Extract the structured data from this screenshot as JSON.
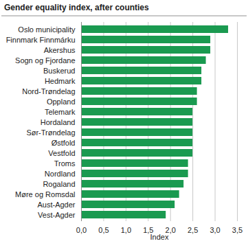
{
  "chart_data": {
    "type": "bar",
    "orientation": "horizontal",
    "title": "Gender equality index, after counties",
    "x_label": "Index",
    "categories": [
      "Oslo municipality",
      "Finnmark Finnmárku",
      "Akershus",
      "Sogn og Fjordane",
      "Buskerud",
      "Hedmark",
      "Nord-Trøndelag",
      "Oppland",
      "Telemark",
      "Hordaland",
      "Sør-Trøndelag",
      "Østfold",
      "Vestfold",
      "Troms",
      "Nordland",
      "Rogaland",
      "Møre og Romsdal",
      "Aust-Agder",
      "Vest-Agder"
    ],
    "values": [
      3.3,
      2.9,
      2.9,
      2.8,
      2.7,
      2.7,
      2.6,
      2.6,
      2.5,
      2.5,
      2.5,
      2.5,
      2.5,
      2.4,
      2.4,
      2.3,
      2.2,
      2.1,
      1.9
    ],
    "color": "#1a9a50",
    "xlim": [
      0,
      3.5
    ],
    "xticks": [
      {
        "value": 0,
        "label": "0,0"
      },
      {
        "value": 0.5,
        "label": "0,5"
      },
      {
        "value": 1,
        "label": "1,0"
      },
      {
        "value": 1.5,
        "label": "1,5"
      },
      {
        "value": 2,
        "label": "2,0"
      },
      {
        "value": 2.5,
        "label": "2,5"
      },
      {
        "value": 3,
        "label": "3,0"
      },
      {
        "value": 3.5,
        "label": "3,5"
      }
    ],
    "grid": true
  }
}
